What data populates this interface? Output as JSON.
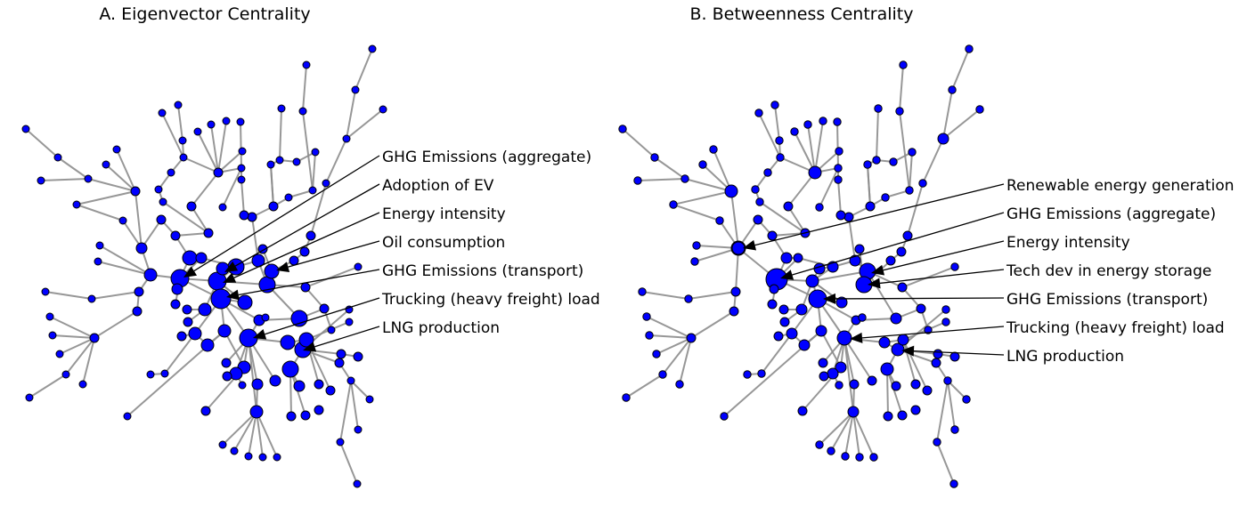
{
  "panels": [
    {
      "title": "A. Eigenvector Centrality",
      "labels": [
        "GHG Emissions (aggregate)",
        "Adoption of EV",
        "Energy intensity",
        "Oil consumption",
        "GHG Emissions (transport)",
        "Trucking (heavy freight) load",
        "LNG production"
      ]
    },
    {
      "title": "B. Betweenness Centrality",
      "labels": [
        "Renewable energy generation",
        "GHG Emissions (aggregate)",
        "Energy intensity",
        "Tech dev in energy storage",
        "GHG Emissions (transport)",
        "Trucking (heavy freight) load",
        "LNG production"
      ]
    }
  ],
  "colors": {
    "node": "#0000ff",
    "edge": "#8c8c8c",
    "text": "#000000"
  }
}
